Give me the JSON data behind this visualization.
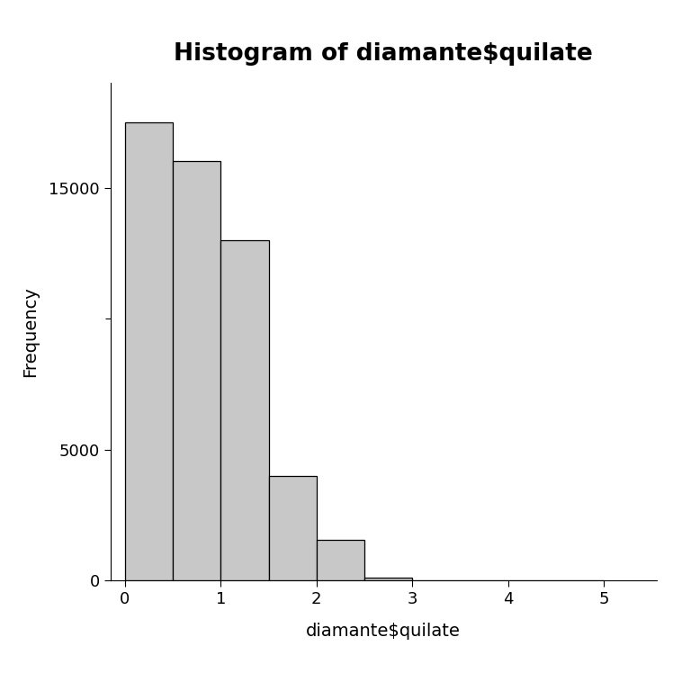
{
  "title": "Histogram of diamante$quilate",
  "xlabel": "diamante$quilate",
  "ylabel": "Frequency",
  "bar_color": "#c8c8c8",
  "bar_edge_color": "#000000",
  "background_color": "#ffffff",
  "bin_edges": [
    0.0,
    0.5,
    1.0,
    1.5,
    2.0,
    2.5,
    3.0,
    3.5,
    4.0,
    4.5,
    5.0
  ],
  "frequencies": [
    17500,
    16000,
    13000,
    4000,
    1550,
    120,
    10,
    0,
    0,
    0
  ],
  "xlim": [
    -0.15,
    5.55
  ],
  "ylim": [
    0,
    19000
  ],
  "yticks": [
    0,
    5000,
    15000
  ],
  "ytick_labels": [
    "0",
    "5000",
    "15000"
  ],
  "xticks": [
    0,
    1,
    2,
    3,
    4,
    5
  ],
  "title_fontsize": 19,
  "label_fontsize": 14,
  "tick_fontsize": 13,
  "figsize": [
    7.68,
    7.68
  ],
  "dpi": 100
}
